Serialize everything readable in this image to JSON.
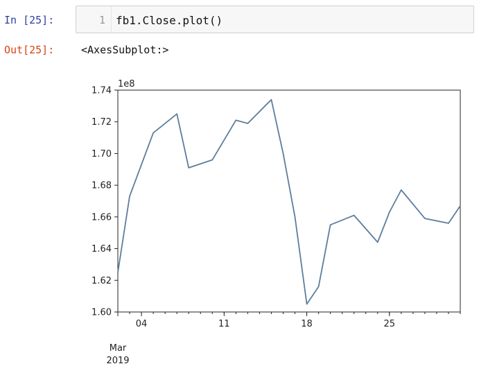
{
  "cell": {
    "in_prompt": "In [25]:",
    "line_number": "1",
    "code": "fb1.Close.plot()",
    "out_prompt": "Out[25]:",
    "output_text": "<AxesSubplot:>"
  },
  "colors": {
    "line": "#5c7d9c",
    "in_prompt": "#303f9f",
    "out_prompt": "#d84315"
  },
  "chart_data": {
    "type": "line",
    "offset_label": "1e8",
    "ylim": [
      1.6,
      1.74
    ],
    "yticks": [
      {
        "value": 1.6,
        "label": "1.60"
      },
      {
        "value": 1.62,
        "label": "1.62"
      },
      {
        "value": 1.64,
        "label": "1.64"
      },
      {
        "value": 1.66,
        "label": "1.66"
      },
      {
        "value": 1.68,
        "label": "1.68"
      },
      {
        "value": 1.7,
        "label": "1.70"
      },
      {
        "value": 1.72,
        "label": "1.72"
      },
      {
        "value": 1.74,
        "label": "1.74"
      }
    ],
    "xlim": [
      "2019-03-02",
      "2019-03-31"
    ],
    "xticks": [
      {
        "value": "2019-03-04",
        "label": "04"
      },
      {
        "value": "2019-03-11",
        "label": "11"
      },
      {
        "value": "2019-03-18",
        "label": "18"
      },
      {
        "value": "2019-03-25",
        "label": "25"
      }
    ],
    "x_secondary_label": [
      "Mar",
      "2019"
    ],
    "series": [
      {
        "x": [
          "2019-03-02",
          "2019-03-03",
          "2019-03-05",
          "2019-03-07",
          "2019-03-08",
          "2019-03-10",
          "2019-03-12",
          "2019-03-13",
          "2019-03-15",
          "2019-03-16",
          "2019-03-17",
          "2019-03-18",
          "2019-03-19",
          "2019-03-20",
          "2019-03-22",
          "2019-03-24",
          "2019-03-25",
          "2019-03-26",
          "2019-03-28",
          "2019-03-30",
          "2019-03-31"
        ],
        "values": [
          1.625,
          1.673,
          1.713,
          1.725,
          1.691,
          1.696,
          1.721,
          1.719,
          1.734,
          1.7,
          1.66,
          1.605,
          1.616,
          1.655,
          1.661,
          1.644,
          1.663,
          1.677,
          1.659,
          1.656,
          1.667
        ]
      }
    ]
  }
}
